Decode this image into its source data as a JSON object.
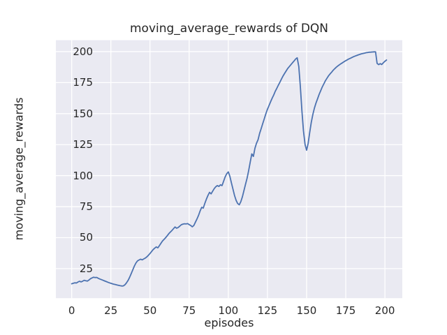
{
  "chart_data": {
    "type": "line",
    "title": "moving_average_rewards of DQN",
    "xlabel": "episodes",
    "ylabel": "moving_average_rewards",
    "xticks": [
      0,
      25,
      50,
      75,
      100,
      125,
      150,
      175,
      200
    ],
    "yticks": [
      25,
      50,
      75,
      100,
      125,
      150,
      175,
      200
    ],
    "xlim": [
      -10.1,
      211.1
    ],
    "ylim": [
      1.2,
      209.2
    ],
    "grid": true,
    "legend_position": "none",
    "colors": {
      "plot_background": "#EAEAF2",
      "grid_color": "#FFFFFF",
      "line_color": "#4C72B0",
      "text_color": "#262626",
      "figure_background": "#FFFFFF"
    },
    "series": [
      {
        "name": "DQN moving average reward",
        "x_start": 0,
        "x_step": 1,
        "values": [
          12.8,
          13.2,
          13.6,
          13.4,
          14.2,
          14.8,
          14.3,
          14.9,
          15.6,
          15.2,
          15.0,
          15.8,
          16.9,
          17.5,
          18.1,
          17.8,
          17.9,
          17.2,
          16.6,
          16.1,
          15.6,
          15.1,
          14.6,
          14.1,
          13.6,
          13.2,
          12.8,
          12.4,
          12.1,
          11.8,
          11.5,
          11.2,
          11.0,
          11.1,
          12.0,
          13.5,
          15.5,
          18.0,
          21.0,
          24.0,
          27.0,
          29.5,
          31.2,
          32.0,
          32.6,
          32.1,
          32.8,
          33.5,
          34.5,
          35.8,
          37.2,
          38.8,
          40.3,
          41.5,
          42.5,
          41.8,
          43.5,
          45.5,
          47.3,
          48.6,
          50.0,
          51.5,
          53.2,
          54.5,
          55.8,
          57.2,
          58.6,
          57.6,
          58.2,
          59.3,
          60.4,
          60.9,
          61.2,
          61.0,
          61.3,
          60.5,
          59.8,
          58.7,
          59.8,
          62.5,
          65.0,
          68.0,
          71.5,
          74.5,
          73.8,
          77.5,
          81.0,
          84.0,
          86.5,
          85.3,
          87.5,
          89.5,
          91.0,
          92.0,
          91.3,
          92.6,
          92.0,
          95.5,
          99.0,
          101.5,
          103.0,
          99.5,
          94.0,
          89.0,
          84.0,
          80.0,
          77.5,
          76.5,
          79.0,
          83.0,
          88.0,
          93.0,
          98.0,
          104.0,
          111.0,
          117.5,
          115.5,
          122.0,
          126.0,
          129.0,
          134.0,
          138.0,
          142.0,
          146.0,
          150.0,
          153.5,
          156.5,
          159.5,
          162.5,
          165.0,
          168.0,
          170.5,
          173.0,
          175.5,
          178.0,
          180.5,
          182.5,
          184.5,
          186.5,
          188.0,
          189.5,
          191.0,
          192.5,
          194.0,
          195.0,
          188.0,
          172.0,
          152.0,
          136.0,
          125.0,
          120.5,
          126.0,
          135.0,
          143.0,
          149.5,
          154.5,
          158.5,
          162.0,
          165.5,
          168.5,
          171.5,
          174.0,
          176.5,
          178.5,
          180.5,
          182.0,
          183.5,
          185.0,
          186.3,
          187.5,
          188.5,
          189.4,
          190.3,
          191.1,
          191.9,
          192.7,
          193.4,
          194.1,
          194.7,
          195.3,
          195.9,
          196.4,
          196.9,
          197.4,
          197.8,
          198.2,
          198.5,
          198.8,
          199.1,
          199.3,
          199.5,
          199.6,
          199.7,
          199.8,
          199.8,
          190.5,
          189.5,
          190.3,
          189.6,
          191.0,
          192.2,
          193.2
        ]
      }
    ]
  }
}
